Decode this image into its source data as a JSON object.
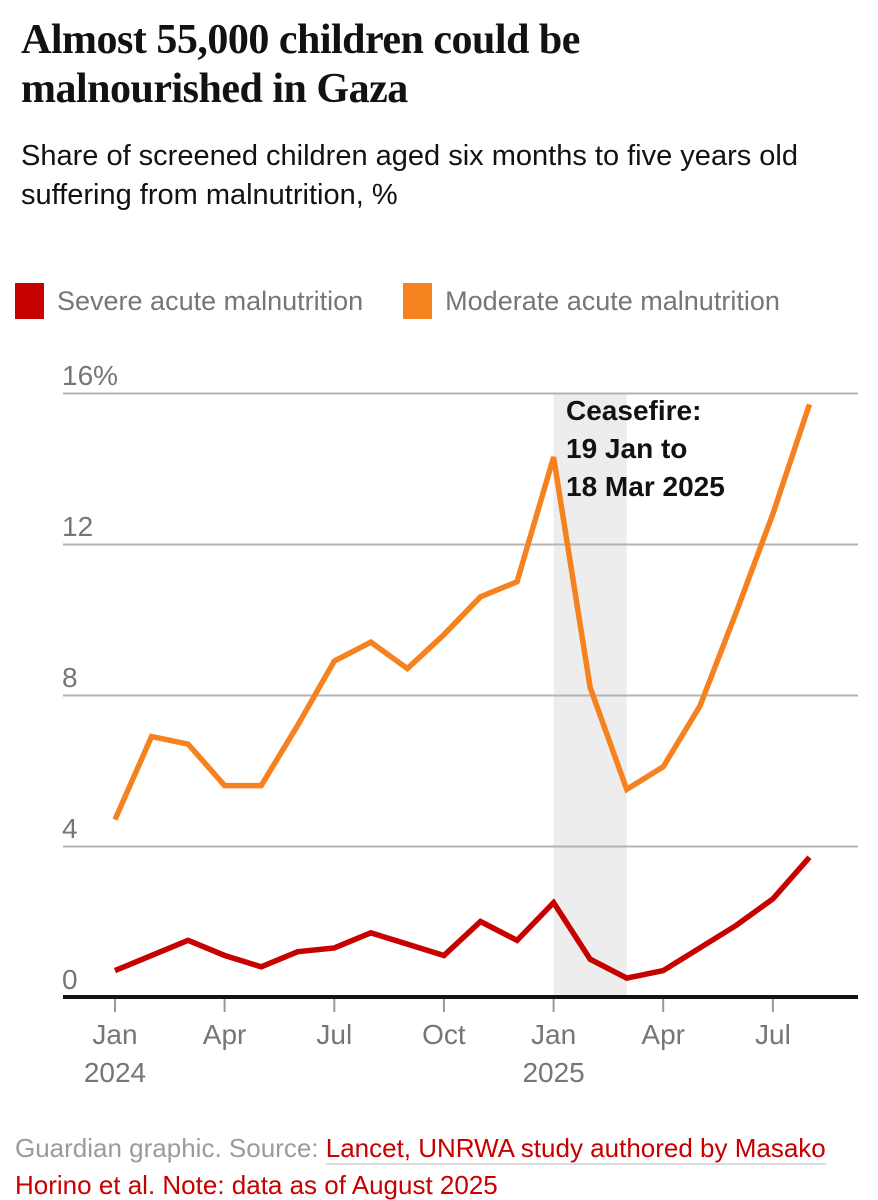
{
  "header": {
    "title": "Almost 55,000 children could be malnourished in Gaza",
    "subtitle": "Share of screened children aged six months to five years old suffering from malnutrition, %"
  },
  "legend": [
    {
      "label": "Severe acute malnutrition",
      "color": "#c70000"
    },
    {
      "label": "Moderate acute malnutrition",
      "color": "#f5821f"
    }
  ],
  "chart_data": {
    "type": "line",
    "title": "Almost 55,000 children could be malnourished in Gaza",
    "subtitle": "Share of screened children aged six months to five years old suffering from malnutrition, %",
    "x": [
      "Jan 2024",
      "Feb 2024",
      "Mar 2024",
      "Apr 2024",
      "May 2024",
      "Jun 2024",
      "Jul 2024",
      "Aug 2024",
      "Sep 2024",
      "Oct 2024",
      "Nov 2024",
      "Dec 2024",
      "Jan 2025",
      "Feb 2025",
      "Mar 2025",
      "Apr 2025",
      "May 2025",
      "Jun 2025",
      "Jul 2025",
      "Aug 2025"
    ],
    "series": [
      {
        "name": "Severe acute malnutrition",
        "color": "#c70000",
        "values": [
          0.7,
          1.1,
          1.5,
          1.1,
          0.8,
          1.2,
          1.3,
          1.7,
          1.4,
          1.1,
          2.0,
          1.5,
          2.5,
          1.0,
          0.5,
          0.7,
          1.3,
          1.9,
          2.6,
          3.7
        ]
      },
      {
        "name": "Moderate acute malnutrition",
        "color": "#f5821f",
        "values": [
          4.7,
          6.9,
          6.7,
          5.6,
          5.6,
          7.2,
          8.9,
          9.4,
          8.7,
          9.6,
          10.6,
          11.0,
          14.3,
          8.2,
          5.5,
          6.1,
          7.7,
          10.2,
          12.8,
          15.7
        ]
      }
    ],
    "ylim": [
      0,
      16
    ],
    "grid": true,
    "legend_position": "top",
    "y_ticks": [
      {
        "label": "16%",
        "value": 16
      },
      {
        "label": "12",
        "value": 12
      },
      {
        "label": "8",
        "value": 8
      },
      {
        "label": "4",
        "value": 4
      },
      {
        "label": "0",
        "value": 0
      }
    ],
    "x_ticks": [
      {
        "label": "Jan",
        "sublabel": "2024",
        "month_index": 0
      },
      {
        "label": "Apr",
        "month_index": 3
      },
      {
        "label": "Jul",
        "month_index": 6
      },
      {
        "label": "Oct",
        "month_index": 9
      },
      {
        "label": "Jan",
        "sublabel": "2025",
        "month_index": 12
      },
      {
        "label": "Apr",
        "month_index": 15
      },
      {
        "label": "Jul",
        "month_index": 18
      }
    ],
    "annotation": {
      "lines": [
        "Ceasefire:",
        "19 Jan to",
        "18 Mar 2025"
      ],
      "band": {
        "from": "Jan 2025",
        "to": "Mar 2025",
        "from_index": 12,
        "to_index": 14,
        "color": "#ededed"
      }
    }
  },
  "footer": {
    "prefix": "Guardian graphic. Source: ",
    "source_link": "Lancet, UNRWA study authored by Masako Horino et al. Note: data as of August 2025"
  }
}
